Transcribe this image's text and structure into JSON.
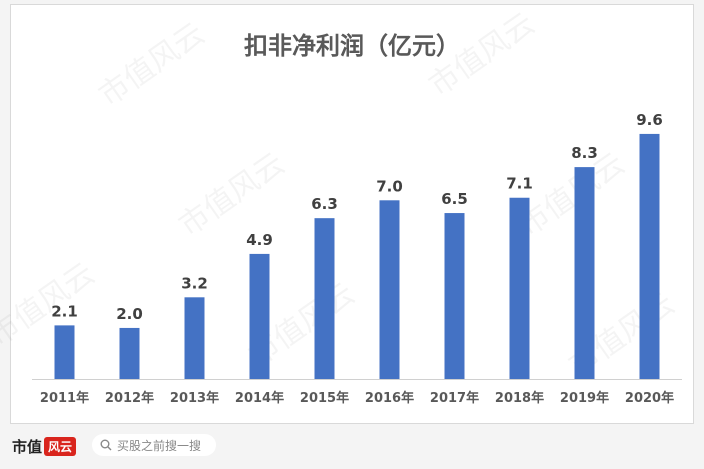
{
  "watermark_text": "市值风云",
  "chart_data": {
    "type": "bar",
    "title": "扣非净利润（亿元）",
    "categories": [
      "2011年",
      "2012年",
      "2013年",
      "2014年",
      "2015年",
      "2016年",
      "2017年",
      "2018年",
      "2019年",
      "2020年"
    ],
    "values": [
      2.1,
      2.0,
      3.2,
      4.9,
      6.3,
      7.0,
      6.5,
      7.1,
      8.3,
      9.6
    ],
    "value_labels": [
      "2.1",
      "2.0",
      "3.2",
      "4.9",
      "6.3",
      "7.0",
      "6.5",
      "7.1",
      "8.3",
      "9.6"
    ],
    "bar_color": "#4472c4",
    "ylim": [
      0,
      10
    ],
    "grid": false,
    "legend": "none"
  },
  "footer": {
    "brand": "市值",
    "brand_badge": "风云",
    "search_placeholder": "买股之前搜一搜",
    "search_icon": "search-icon"
  }
}
